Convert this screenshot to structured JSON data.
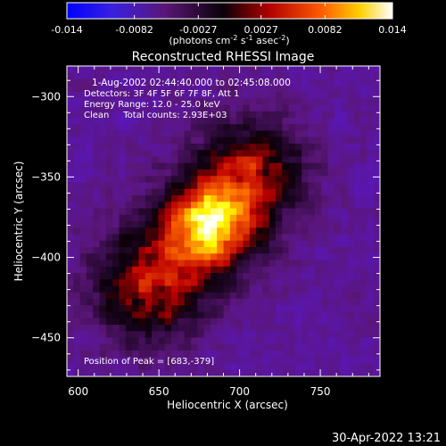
{
  "chart_data": {
    "type": "heatmap",
    "title": "Reconstructed RHESSI Image",
    "colorbar": {
      "ticks": [
        "-0.014",
        "-0.0082",
        "-0.0027",
        "0.0027",
        "0.0082",
        "0.014"
      ],
      "label_main": "(photons cm",
      "label_exp1": "-2",
      "label_mid": " s",
      "label_exp2": "-1",
      "label_tail": " asec",
      "label_exp3": "-2",
      "label_end": ")",
      "range": [
        -0.014,
        0.014
      ]
    },
    "xlabel": "Heliocentric X (arcsec)",
    "ylabel": "Heliocentric Y (arcsec)",
    "xlim": [
      593,
      787
    ],
    "ylim": [
      -474,
      -281
    ],
    "xticks": [
      600,
      650,
      700,
      750
    ],
    "yticks": [
      -300,
      -350,
      -400,
      -450
    ],
    "info_lines": [
      "1-Aug-2002 02:44:40.000 to 02:45:08.000",
      "Detectors: 3F 4F 5F 6F 7F 8F, Att 1",
      "Energy Range: 12.0 - 25.0 keV",
      "Clean     Total counts: 2.93E+03"
    ],
    "peak_label": "Position of Peak = [683,-379]",
    "peak": [
      683,
      -379
    ],
    "source_axis": {
      "start": [
        645,
        -418
      ],
      "end": [
        706,
        -350
      ]
    },
    "colormap": [
      "#0000ff",
      "#5a16c8",
      "#5a1678",
      "#0a0008",
      "#be0000",
      "#ff7000",
      "#ffff00",
      "#ffffff"
    ]
  },
  "footer": {
    "timestamp": "30-Apr-2022 13:21"
  }
}
